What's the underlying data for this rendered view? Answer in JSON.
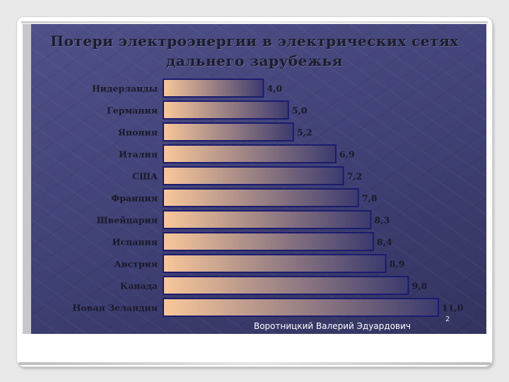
{
  "slide": {
    "title_line1": "Потери электроэнергии в электрических сетях",
    "title_line2": "дальнего зарубежья",
    "footer": "Воротницкий Валерий Эдуардович",
    "page_number": "2"
  },
  "chart_data": {
    "type": "bar",
    "orientation": "horizontal",
    "title": "Потери электроэнергии в электрических сетях дальнего зарубежья",
    "categories": [
      "Нидерланды",
      "Германия",
      "Япония",
      "Италия",
      "США",
      "Франция",
      "Швейцария",
      "Испания",
      "Австрия",
      "Канада",
      "Новая Зеландия"
    ],
    "values": [
      4.0,
      5.0,
      5.2,
      6.9,
      7.2,
      7.8,
      8.3,
      8.4,
      8.9,
      9.8,
      11.0
    ],
    "value_labels": [
      "4,0",
      "5,0",
      "5,2",
      "6,9",
      "7,2",
      "7,8",
      "8,3",
      "8,4",
      "8,9",
      "9,8",
      "11,0"
    ],
    "xlim": [
      0,
      11.0
    ],
    "grid": false,
    "legend": "none",
    "colors": {
      "bar_start": "#f9c89a",
      "bar_end": "#3b3a6e",
      "bar_border": "#1c1c6e",
      "text": "#1a1a2a"
    }
  }
}
